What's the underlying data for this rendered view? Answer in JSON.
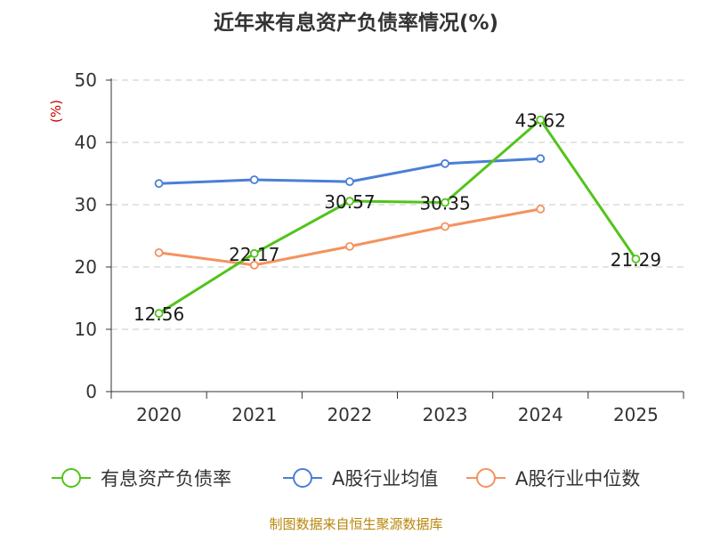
{
  "chart_data": {
    "type": "line",
    "title": "近年来有息资产负债率情况(%)",
    "ylabel": "(%)",
    "xlabel": "",
    "categories": [
      "2020",
      "2021",
      "2022",
      "2023",
      "2024",
      "2025"
    ],
    "ylim": [
      0,
      50
    ],
    "yticks": [
      "0",
      "10",
      "20",
      "30",
      "40",
      "50"
    ],
    "grid": true,
    "legend_position": "bottom",
    "series": [
      {
        "name": "有息资产负债率",
        "color": "#52c41a",
        "values": [
          12.56,
          22.17,
          30.57,
          30.35,
          43.62,
          21.29
        ],
        "labels": [
          "12.56",
          "22.17",
          "30.57",
          "30.35",
          "43.62",
          "21.29"
        ]
      },
      {
        "name": "A股行业均值",
        "color": "#4a7fd6",
        "values": [
          33.4,
          34.0,
          33.7,
          36.6,
          37.4,
          null
        ]
      },
      {
        "name": "A股行业中位数",
        "color": "#f4925e",
        "values": [
          22.3,
          20.3,
          23.3,
          26.5,
          29.3,
          null
        ]
      }
    ],
    "source": "制图数据来自恒生聚源数据库"
  }
}
